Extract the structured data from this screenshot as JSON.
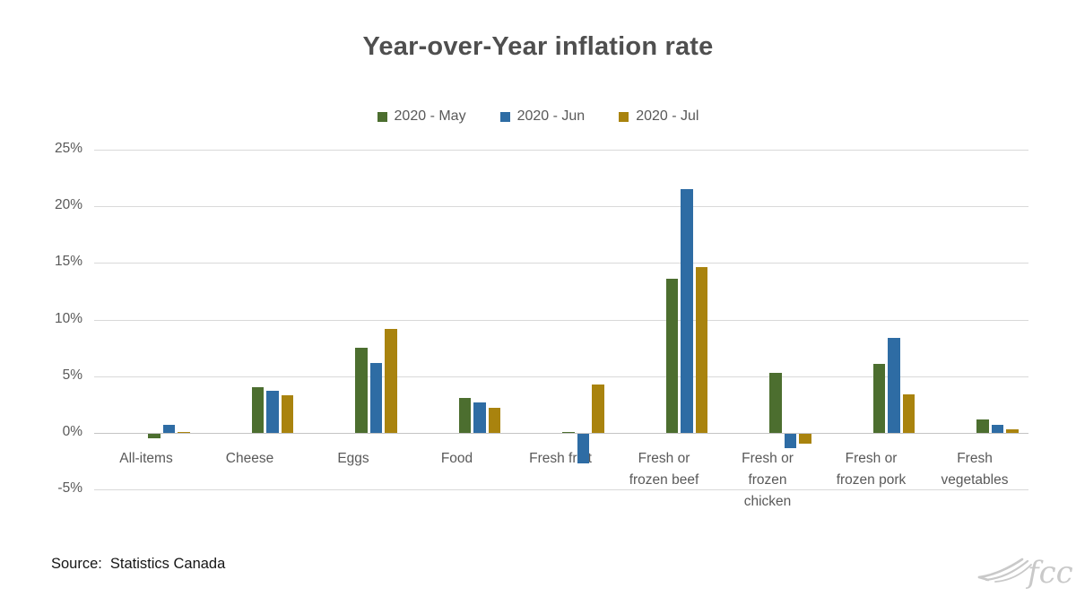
{
  "title": "Year-over-Year inflation rate",
  "chart_data": {
    "type": "bar",
    "title": "Year-over-Year inflation rate",
    "categories": [
      "All-items",
      "Cheese",
      "Eggs",
      "Food",
      "Fresh fruit",
      "Fresh or frozen beef",
      "Fresh or frozen chicken",
      "Fresh or frozen pork",
      "Fresh vegetables"
    ],
    "series": [
      {
        "name": "2020 - May",
        "color": "#4c6e2f",
        "values": [
          -0.4,
          4.0,
          7.5,
          3.1,
          0.1,
          13.6,
          5.3,
          6.1,
          1.2
        ]
      },
      {
        "name": "2020 - Jun",
        "color": "#2e6ca4",
        "values": [
          0.7,
          3.7,
          6.2,
          2.7,
          -2.6,
          21.5,
          -1.3,
          8.4,
          0.7
        ]
      },
      {
        "name": "2020 - Jul",
        "color": "#a9830e",
        "values": [
          0.1,
          3.3,
          9.2,
          2.2,
          4.3,
          14.6,
          -0.9,
          3.4,
          0.3
        ]
      }
    ],
    "y_ticks": [
      {
        "value": 25,
        "label": "25%"
      },
      {
        "value": 20,
        "label": "20%"
      },
      {
        "value": 15,
        "label": "15%"
      },
      {
        "value": 10,
        "label": "10%"
      },
      {
        "value": 5,
        "label": "5%"
      },
      {
        "value": 0,
        "label": "0%"
      },
      {
        "value": -5,
        "label": "-5%"
      }
    ],
    "ylim": [
      -5,
      25
    ],
    "grid": true,
    "legend_position": "top",
    "xlabel": "",
    "ylabel": ""
  },
  "source": {
    "label": "Source:",
    "value": "Statistics Canada"
  },
  "logo": {
    "text": "fcc",
    "color": "#c8c8c8"
  }
}
